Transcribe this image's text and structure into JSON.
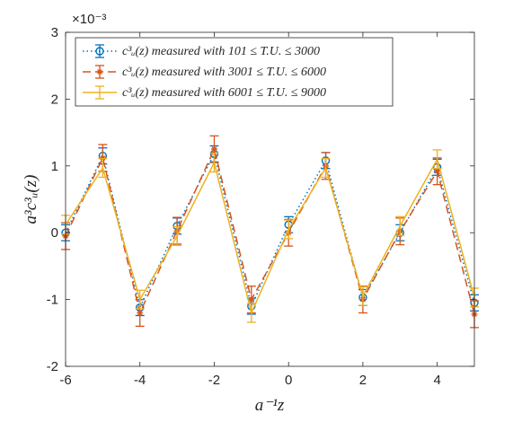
{
  "chart_data": {
    "type": "line",
    "xlabel": "a⁻¹z",
    "ylabel": "a³c³ᵤ(z)",
    "exponent_label": "×10⁻³",
    "x": [
      -6,
      -5,
      -4,
      -3,
      -2,
      -1,
      0,
      1,
      2,
      3,
      4,
      5
    ],
    "xlim": [
      -6,
      5
    ],
    "ylim": [
      -2,
      3
    ],
    "scale": 0.001,
    "xticks": [
      -6,
      -4,
      -2,
      0,
      2,
      4
    ],
    "yticks": [
      -2,
      -1,
      0,
      1,
      2,
      3
    ],
    "xtick_labels": [
      "-6",
      "-4",
      "-2",
      "0",
      "2",
      "4"
    ],
    "ytick_labels": [
      "-2",
      "-1",
      "0",
      "1",
      "2",
      "3"
    ],
    "grid": false,
    "legend_position": "top-left",
    "series": [
      {
        "name": "c³ᵤ(z) measured with 101 ≤ T.U. ≤ 3000",
        "color": "#0072BD",
        "line_style": "dotted",
        "marker": "circle",
        "values": [
          0.0,
          1.15,
          -1.12,
          0.1,
          1.18,
          -1.1,
          0.12,
          1.08,
          -0.97,
          0.0,
          0.98,
          -1.05
        ],
        "errors": [
          0.12,
          0.12,
          0.12,
          0.12,
          0.12,
          0.12,
          0.12,
          0.12,
          0.12,
          0.12,
          0.12,
          0.12
        ]
      },
      {
        "name": "c³ᵤ(z) measured with 3001 ≤ T.U. ≤ 6000",
        "color": "#D95319",
        "line_style": "dashed",
        "marker": "asterisk",
        "values": [
          -0.05,
          1.12,
          -1.2,
          0.03,
          1.25,
          -1.0,
          0.0,
          1.0,
          -1.0,
          0.02,
          0.92,
          -1.22
        ],
        "errors": [
          0.2,
          0.2,
          0.2,
          0.2,
          0.2,
          0.2,
          0.2,
          0.2,
          0.2,
          0.2,
          0.2,
          0.2
        ]
      },
      {
        "name": "c³ᵤ(z) measured with 6001 ≤ T.U. ≤ 9000",
        "color": "#EDB120",
        "line_style": "solid",
        "marker": "none",
        "values": [
          0.12,
          0.97,
          -1.0,
          -0.05,
          1.05,
          -1.2,
          0.05,
          0.97,
          -0.95,
          0.1,
          1.1,
          -0.97
        ],
        "errors": [
          0.14,
          0.14,
          0.14,
          0.14,
          0.14,
          0.14,
          0.14,
          0.14,
          0.14,
          0.14,
          0.14,
          0.14
        ]
      }
    ]
  }
}
